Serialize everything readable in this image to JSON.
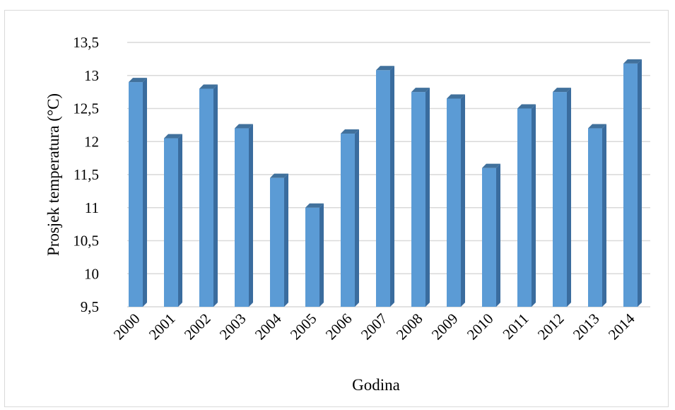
{
  "chart_data": {
    "type": "bar",
    "title": "",
    "xlabel": "Godina",
    "ylabel": "Prosjek temperatura (°C)",
    "categories": [
      "2000",
      "2001",
      "2002",
      "2003",
      "2004",
      "2005",
      "2006",
      "2007",
      "2008",
      "2009",
      "2010",
      "2011",
      "2012",
      "2013",
      "2014"
    ],
    "values": [
      12.9,
      12.05,
      12.8,
      12.2,
      11.45,
      11.0,
      12.12,
      13.08,
      12.75,
      12.65,
      11.6,
      12.5,
      12.75,
      12.2,
      13.18
    ],
    "ylim": [
      9.5,
      13.5
    ],
    "yticks": [
      "9,5",
      "10",
      "10,5",
      "11",
      "11,5",
      "12",
      "12,5",
      "13",
      "13,5"
    ],
    "grid": true,
    "legend": "none",
    "colors": {
      "bar_front": "#5b9bd5",
      "bar_side": "#3a6c9e",
      "bar_top": "#41719c",
      "grid": "#d9d9d9"
    }
  }
}
